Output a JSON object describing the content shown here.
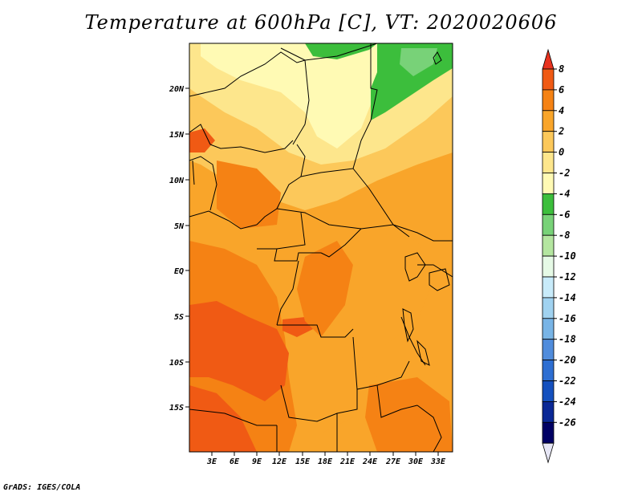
{
  "title": "Temperature at 600hPa [C], VT: 2020020606",
  "credit": "GrADS: IGES/COLA",
  "map": {
    "lat_labels": [
      "20N",
      "15N",
      "10N",
      "5N",
      "EQ",
      "5S",
      "10S",
      "15S"
    ],
    "lon_labels": [
      "3E",
      "6E",
      "9E",
      "12E",
      "15E",
      "18E",
      "21E",
      "24E",
      "27E",
      "30E",
      "33E"
    ]
  },
  "colorbar": {
    "labels": [
      "8",
      "6",
      "4",
      "2",
      "0",
      "-2",
      "-4",
      "-6",
      "-8",
      "-10",
      "-12",
      "-14",
      "-16",
      "-18",
      "-20",
      "-22",
      "-24",
      "-26"
    ],
    "colors": [
      "#e8321e",
      "#f05a14",
      "#f58214",
      "#f9a52a",
      "#fcc85a",
      "#fde68c",
      "#fffab4",
      "#3cbe3c",
      "#78d278",
      "#b4e6a0",
      "#e6fae6",
      "#c8ebfa",
      "#a0d2f0",
      "#78b4e6",
      "#508cdc",
      "#2d6ed2",
      "#1450be",
      "#0a2896",
      "#000064",
      "#e6e6f5"
    ]
  }
}
